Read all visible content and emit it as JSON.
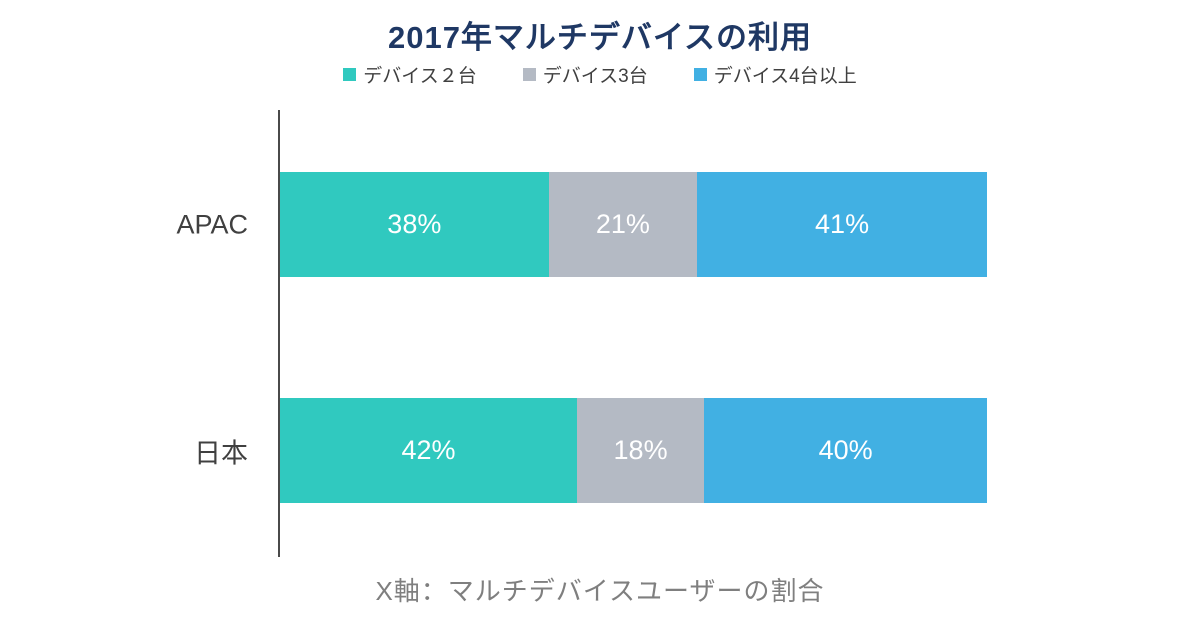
{
  "title": "2017年マルチデバイスの利用",
  "footer_note": "X軸：マルチデバイスユーザーの割合",
  "colors": {
    "title_text": "#1f3864",
    "axis_line": "#4a4a4a",
    "category_text": "#404040",
    "value_text": "#ffffff",
    "footer_text": "#7f7f7f",
    "series_device2": "#30c9bf",
    "series_device3": "#b4bac4",
    "series_device4plus": "#41b0e3"
  },
  "chart_data": {
    "type": "bar",
    "orientation": "horizontal",
    "stacked": true,
    "title": "2017年マルチデバイスの利用",
    "xlabel": "X軸：マルチデバイスユーザーの割合",
    "ylabel": "",
    "xlim": [
      0,
      100
    ],
    "grid": false,
    "legend_position": "top",
    "value_suffix": "%",
    "categories": [
      "APAC",
      "日本"
    ],
    "series": [
      {
        "name": "デバイス２台",
        "color": "#30c9bf",
        "values": [
          38,
          42
        ]
      },
      {
        "name": "デバイス3台",
        "color": "#b4bac4",
        "values": [
          21,
          18
        ]
      },
      {
        "name": "デバイス4台以上",
        "color": "#41b0e3",
        "values": [
          41,
          40
        ]
      }
    ],
    "value_labels": [
      [
        "38%",
        "21%",
        "41%"
      ],
      [
        "42%",
        "18%",
        "40%"
      ]
    ]
  }
}
